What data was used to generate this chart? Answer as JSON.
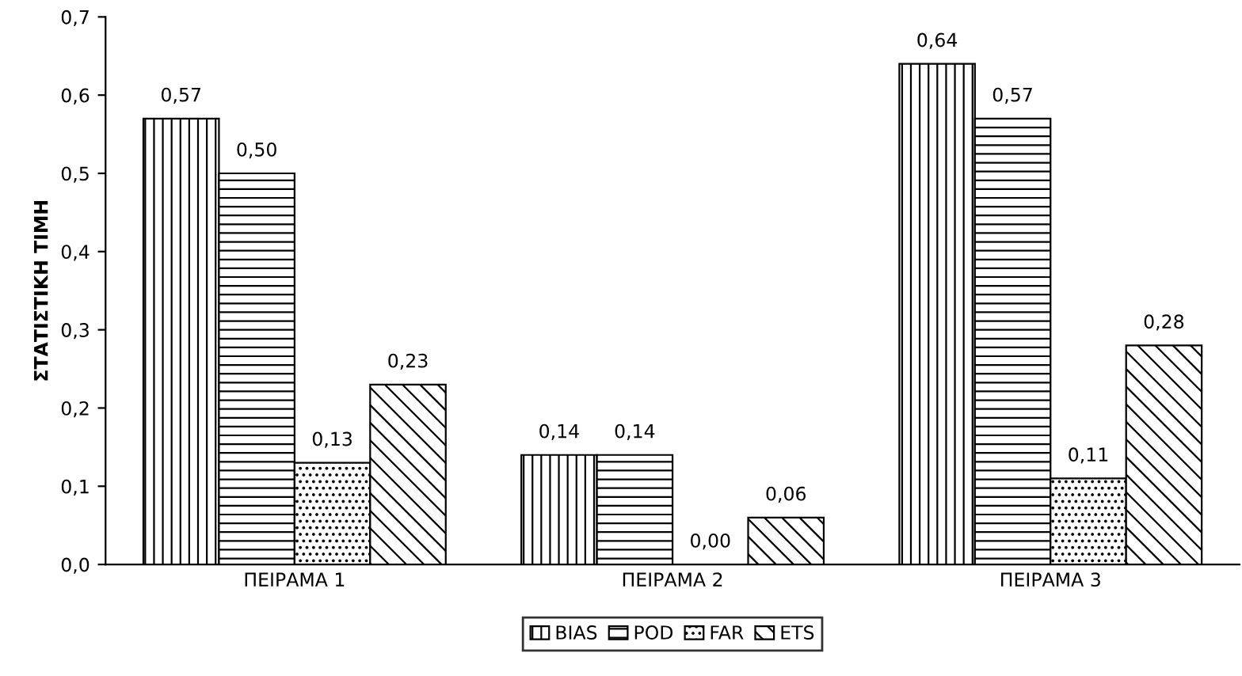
{
  "chart_data": {
    "type": "bar",
    "ylabel": "ΣΤΑΤΙΣΤΙΚΗ ΤΙΜΗ",
    "categories": [
      "ΠΕΙΡΑΜΑ 1",
      "ΠΕΙΡΑΜΑ 2",
      "ΠΕΙΡΑΜΑ 3"
    ],
    "series": [
      {
        "name": "BIAS",
        "color": "#000000",
        "values": [
          0.57,
          0.14,
          0.64
        ],
        "value_labels": [
          "0,57",
          "0,14",
          "0,64"
        ]
      },
      {
        "name": "POD",
        "color": "#000000",
        "values": [
          0.5,
          0.14,
          0.57
        ],
        "value_labels": [
          "0,50",
          "0,14",
          "0,57"
        ]
      },
      {
        "name": "FAR",
        "color": "#000000",
        "values": [
          0.13,
          0.0,
          0.11
        ],
        "value_labels": [
          "0,13",
          "0,00",
          "0,11"
        ]
      },
      {
        "name": "ETS",
        "color": "#000000",
        "values": [
          0.23,
          0.06,
          0.28
        ],
        "value_labels": [
          "0,23",
          "0,06",
          "0,28"
        ]
      }
    ],
    "ylim": [
      0,
      0.7
    ],
    "yticks": [
      {
        "value": 0,
        "label": "0,0"
      },
      {
        "value": 0.1,
        "label": "0,1"
      },
      {
        "value": 0.2,
        "label": "0,2"
      },
      {
        "value": 0.3,
        "label": "0,3"
      },
      {
        "value": 0.4,
        "label": "0,4"
      },
      {
        "value": 0.5,
        "label": "0,5"
      },
      {
        "value": 0.6,
        "label": "0,6"
      },
      {
        "value": 0.7,
        "label": "0,7"
      }
    ],
    "grid": false,
    "legend": "bottom"
  }
}
